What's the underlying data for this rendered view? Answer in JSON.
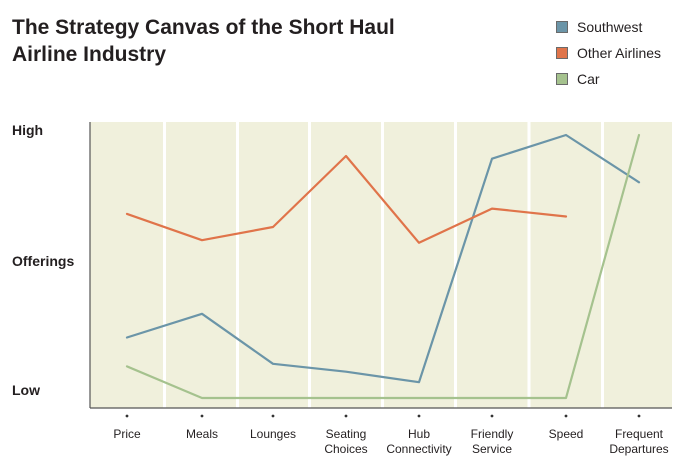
{
  "title_line1": "The Strategy Canvas of the Short Haul",
  "title_line2": "Airline Industry",
  "chart_data": {
    "type": "line",
    "title": "The Strategy Canvas of the Short Haul Airline Industry",
    "xlabel": "",
    "ylabel": "Offerings",
    "y_tick_labels": [
      "High",
      "Offerings",
      "Low"
    ],
    "ylim": [
      0,
      10
    ],
    "grid": true,
    "legend_position": "top-right",
    "categories": [
      "Price",
      "Meals",
      "Lounges",
      "Seating\nChoices",
      "Hub\nConnectivity",
      "Friendly\nService",
      "Speed",
      "Frequent\nDepartures"
    ],
    "series": [
      {
        "name": "Southwest",
        "color": "#6b95a8",
        "values": [
          2.3,
          3.2,
          1.3,
          1.0,
          0.6,
          9.1,
          10.0,
          8.2
        ]
      },
      {
        "name": "Other Airlines",
        "color": "#e0744a",
        "values": [
          7.0,
          6.0,
          6.5,
          9.2,
          5.9,
          7.2,
          6.9,
          null
        ]
      },
      {
        "name": "Car",
        "color": "#a5c28e",
        "values": [
          1.2,
          0.0,
          0.0,
          0.0,
          0.0,
          0.0,
          0.0,
          10.0
        ]
      }
    ],
    "plot_background": "#f0f0dc",
    "axis_color": "#555555"
  }
}
